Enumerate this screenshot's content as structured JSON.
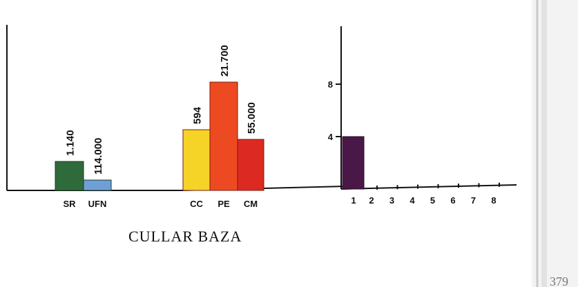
{
  "chart_data": [
    {
      "type": "bar",
      "categories": [
        "SR",
        "UFN"
      ],
      "values": [
        1140,
        114000
      ],
      "value_labels": [
        "1.140",
        "114.000"
      ],
      "colors": [
        "#2f6b3a",
        "#6f9fd8"
      ]
    },
    {
      "type": "bar",
      "categories": [
        "CC",
        "PE",
        "CM"
      ],
      "values": [
        594,
        21700,
        55000
      ],
      "value_labels": [
        "594",
        "21.700",
        "55.000"
      ],
      "colors": [
        "#f5d327",
        "#ee4a22",
        "#dc2a22"
      ]
    },
    {
      "type": "bar",
      "categories": [
        "1",
        "2",
        "3",
        "4",
        "5",
        "6",
        "7",
        "8"
      ],
      "values": [
        4,
        0,
        0,
        0,
        0,
        0,
        0,
        0
      ],
      "y_ticks": [
        {
          "label": "4",
          "value": 4
        },
        {
          "label": "8",
          "value": 8
        }
      ],
      "colors": [
        "#4a1846"
      ]
    }
  ],
  "caption": "CULLAR BAZA",
  "page_number": "379"
}
